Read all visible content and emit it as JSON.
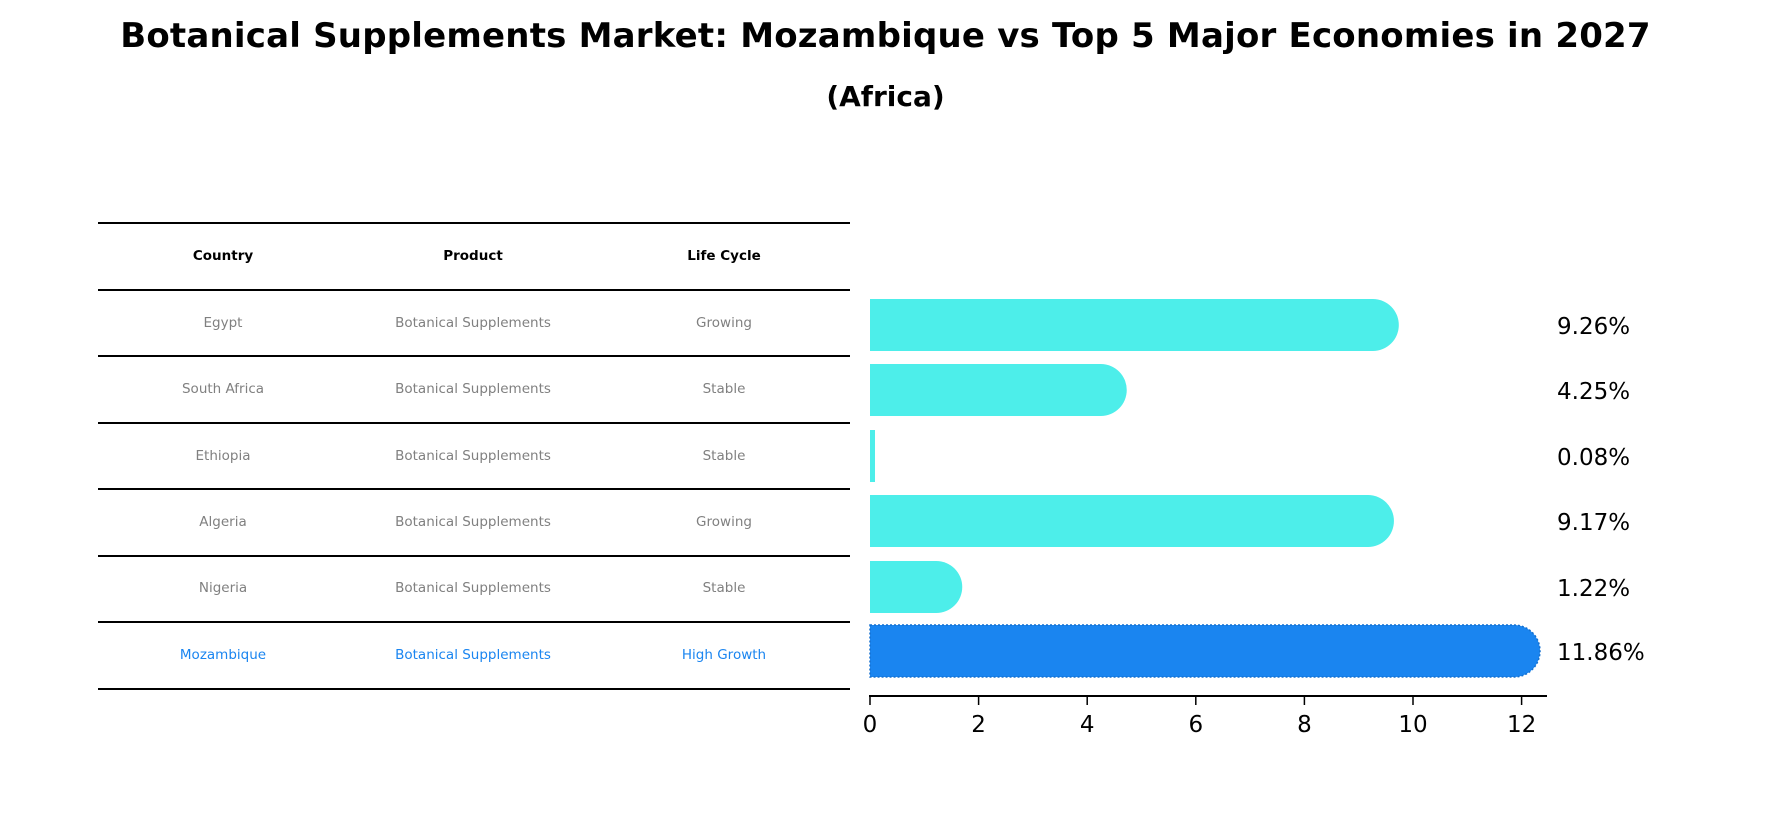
{
  "title": "Botanical Supplements Market: Mozambique vs Top 5 Major Economies in 2027",
  "subtitle": "(Africa)",
  "table": {
    "headers": [
      "Country",
      "Product",
      "Life Cycle"
    ],
    "rows": [
      {
        "country": "Egypt",
        "product": "Botanical Supplements",
        "life_cycle": "Growing",
        "highlight": false
      },
      {
        "country": "South Africa",
        "product": "Botanical Supplements",
        "life_cycle": "Stable",
        "highlight": false
      },
      {
        "country": "Ethiopia",
        "product": "Botanical Supplements",
        "life_cycle": "Stable",
        "highlight": false
      },
      {
        "country": "Algeria",
        "product": "Botanical Supplements",
        "life_cycle": "Growing",
        "highlight": false
      },
      {
        "country": "Nigeria",
        "product": "Botanical Supplements",
        "life_cycle": "Stable",
        "highlight": false
      },
      {
        "country": "Mozambique",
        "product": "Botanical Supplements",
        "life_cycle": "High Growth",
        "highlight": true
      }
    ]
  },
  "colors": {
    "bar": "#4deeea",
    "highlight_bar": "#1a85f0",
    "highlight_text": "#1a85f0",
    "cell_text": "#808080"
  },
  "value_labels": [
    "9.26%",
    "4.25%",
    "0.08%",
    "9.17%",
    "1.22%",
    "11.86%"
  ],
  "axis": {
    "ticks": [
      "0",
      "2",
      "4",
      "6",
      "8",
      "10",
      "12"
    ]
  },
  "chart_data": {
    "type": "bar",
    "orientation": "horizontal",
    "title": "Botanical Supplements Market: Mozambique vs Top 5 Major Economies in 2027",
    "subtitle": "(Africa)",
    "categories": [
      "Egypt",
      "South Africa",
      "Ethiopia",
      "Algeria",
      "Nigeria",
      "Mozambique"
    ],
    "values": [
      9.26,
      4.25,
      0.08,
      9.17,
      1.22,
      11.86
    ],
    "value_labels": [
      "9.26%",
      "4.25%",
      "0.08%",
      "9.17%",
      "1.22%",
      "11.86%"
    ],
    "highlighted": "Mozambique",
    "xlabel": "",
    "ylabel": "",
    "xlim": [
      0,
      12.4
    ],
    "xticks": [
      0,
      2,
      4,
      6,
      8,
      10,
      12
    ],
    "grid": false,
    "legend": null
  }
}
